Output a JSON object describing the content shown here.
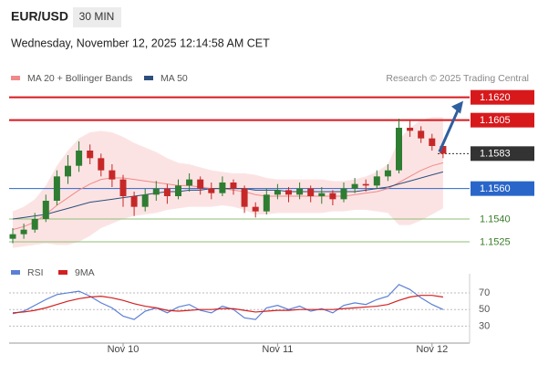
{
  "header": {
    "symbol": "EUR/USD",
    "timeframe": "30 MIN",
    "timestamp": "Wednesday, November 12, 2025 12:14:58 AM CET",
    "source": "Research © 2025 Trading Central"
  },
  "chart_data": [
    {
      "type": "candlestick",
      "categories": [
        null,
        null,
        null,
        null,
        null,
        null,
        null,
        null,
        null,
        null,
        "Nov 10",
        null,
        null,
        null,
        null,
        null,
        null,
        null,
        null,
        null,
        null,
        null,
        null,
        null,
        "Nov 11",
        null,
        null,
        null,
        null,
        null,
        null,
        null,
        null,
        null,
        null,
        null,
        null,
        null,
        "Nov 12",
        null
      ],
      "ohlc": [
        [
          1.1527,
          1.1534,
          1.1524,
          1.153
        ],
        [
          1.153,
          1.1537,
          1.1527,
          1.1533
        ],
        [
          1.1533,
          1.1544,
          1.1531,
          1.154
        ],
        [
          1.154,
          1.1556,
          1.1538,
          1.1552
        ],
        [
          1.1552,
          1.1572,
          1.1549,
          1.1568
        ],
        [
          1.1568,
          1.1582,
          1.1563,
          1.1575
        ],
        [
          1.1575,
          1.1591,
          1.1571,
          1.1585
        ],
        [
          1.1585,
          1.1589,
          1.1576,
          1.158
        ],
        [
          1.158,
          1.1583,
          1.1568,
          1.1572
        ],
        [
          1.1572,
          1.1576,
          1.1561,
          1.1566
        ],
        [
          1.1566,
          1.1569,
          1.1548,
          1.1555
        ],
        [
          1.1555,
          1.1558,
          1.1542,
          1.1548
        ],
        [
          1.1548,
          1.156,
          1.1545,
          1.1556
        ],
        [
          1.1556,
          1.1565,
          1.1552,
          1.156
        ],
        [
          1.156,
          1.1563,
          1.155,
          1.1555
        ],
        [
          1.1555,
          1.1566,
          1.1553,
          1.1562
        ],
        [
          1.1562,
          1.157,
          1.1558,
          1.1566
        ],
        [
          1.1566,
          1.1568,
          1.1556,
          1.156
        ],
        [
          1.156,
          1.1564,
          1.1553,
          1.1557
        ],
        [
          1.1557,
          1.1568,
          1.1555,
          1.1564
        ],
        [
          1.1564,
          1.1566,
          1.1556,
          1.156
        ],
        [
          1.156,
          1.1562,
          1.1544,
          1.1548
        ],
        [
          1.1548,
          1.1551,
          1.1541,
          1.1545
        ],
        [
          1.1545,
          1.156,
          1.1543,
          1.1556
        ],
        [
          1.1556,
          1.1563,
          1.1553,
          1.1559
        ],
        [
          1.1559,
          1.1561,
          1.1551,
          1.1556
        ],
        [
          1.1556,
          1.1564,
          1.1553,
          1.156
        ],
        [
          1.156,
          1.1562,
          1.1551,
          1.1555
        ],
        [
          1.1555,
          1.1561,
          1.155,
          1.1557
        ],
        [
          1.1557,
          1.1559,
          1.1549,
          1.1553
        ],
        [
          1.1553,
          1.1564,
          1.1551,
          1.156
        ],
        [
          1.156,
          1.1567,
          1.1557,
          1.1563
        ],
        [
          1.1563,
          1.1566,
          1.1558,
          1.1562
        ],
        [
          1.1562,
          1.1572,
          1.156,
          1.1568
        ],
        [
          1.1568,
          1.1576,
          1.1565,
          1.1572
        ],
        [
          1.1572,
          1.1606,
          1.157,
          1.16
        ],
        [
          1.16,
          1.1605,
          1.1594,
          1.1598
        ],
        [
          1.1598,
          1.1601,
          1.159,
          1.1593
        ],
        [
          1.1593,
          1.1596,
          1.1585,
          1.1588
        ],
        [
          1.1588,
          1.159,
          1.158,
          1.1583
        ]
      ],
      "up_color": "#2e7d32",
      "down_color": "#c62828",
      "series": [
        {
          "name": "MA 20 + Bollinger Bands",
          "color": "#f08a8a",
          "values": [
            1.1533,
            1.1535,
            1.1538,
            1.1543,
            1.1549,
            1.1554,
            1.1559,
            1.1563,
            1.1566,
            1.1567,
            1.1567,
            1.1566,
            1.1565,
            1.1564,
            1.1563,
            1.1562,
            1.1562,
            1.1561,
            1.156,
            1.156,
            1.1559,
            1.1558,
            1.1556,
            1.1555,
            1.1555,
            1.1555,
            1.1555,
            1.1555,
            1.1555,
            1.1555,
            1.1555,
            1.1556,
            1.1557,
            1.1558,
            1.156,
            1.1564,
            1.1568,
            1.1572,
            1.1575,
            1.1577
          ]
        },
        {
          "name": "MA 50",
          "color": "#2d4f7c",
          "values": [
            1.154,
            1.1541,
            1.1542,
            1.1543,
            1.1545,
            1.1547,
            1.1549,
            1.1551,
            1.1552,
            1.1553,
            1.1554,
            1.1555,
            1.1556,
            1.1557,
            1.1558,
            1.1558,
            1.1559,
            1.1559,
            1.156,
            1.156,
            1.156,
            1.156,
            1.1559,
            1.1559,
            1.1559,
            1.1558,
            1.1558,
            1.1558,
            1.1558,
            1.1558,
            1.1558,
            1.1558,
            1.1559,
            1.156,
            1.1561,
            1.1563,
            1.1565,
            1.1567,
            1.1569,
            1.1571
          ]
        }
      ],
      "bands": {
        "color": "#fbdada",
        "upper": [
          1.1545,
          1.1548,
          1.1553,
          1.1562,
          1.1575,
          1.1585,
          1.1593,
          1.1597,
          1.1598,
          1.1597,
          1.1594,
          1.159,
          1.1587,
          1.1584,
          1.158,
          1.1577,
          1.1576,
          1.1574,
          1.1572,
          1.1571,
          1.157,
          1.157,
          1.1569,
          1.1567,
          1.1566,
          1.1566,
          1.1566,
          1.1566,
          1.1566,
          1.1565,
          1.1565,
          1.1566,
          1.1568,
          1.1571,
          1.1576,
          1.1592,
          1.16,
          1.1605,
          1.1607,
          1.1607
        ],
        "lower": [
          1.1521,
          1.1522,
          1.1523,
          1.1524,
          1.1523,
          1.1523,
          1.1525,
          1.1529,
          1.1534,
          1.1537,
          1.154,
          1.1542,
          1.1543,
          1.1544,
          1.1546,
          1.1547,
          1.1548,
          1.1548,
          1.1548,
          1.1549,
          1.1548,
          1.1546,
          1.1543,
          1.1543,
          1.1544,
          1.1544,
          1.1544,
          1.1544,
          1.1544,
          1.1545,
          1.1545,
          1.1546,
          1.1546,
          1.1545,
          1.1544,
          1.1536,
          1.1536,
          1.1539,
          1.1543,
          1.1547
        ]
      },
      "levels": [
        {
          "value": 1.162,
          "label": "1.1620",
          "color": "#d7191c",
          "line": "solid",
          "box": true
        },
        {
          "value": 1.1605,
          "label": "1.1605",
          "color": "#d7191c",
          "line": "solid",
          "box": true
        },
        {
          "value": 1.1583,
          "label": "1.1583",
          "color": "#333333",
          "line": "dotted",
          "box": true
        },
        {
          "value": 1.156,
          "label": "1.1560",
          "color": "#2a66c9",
          "line": "solid",
          "box": true
        },
        {
          "value": 1.154,
          "label": "1.1540",
          "color": "#8fbf76",
          "line": "solid",
          "box": false
        },
        {
          "value": 1.1525,
          "label": "1.1525",
          "color": "#8fbf76",
          "line": "solid",
          "box": false
        }
      ],
      "ylim": [
        1.1519,
        1.1627
      ]
    },
    {
      "type": "line",
      "series": [
        {
          "name": "RSI",
          "color": "#5b7fd6",
          "values": [
            45,
            48,
            55,
            62,
            68,
            70,
            72,
            66,
            58,
            52,
            42,
            38,
            48,
            52,
            46,
            53,
            56,
            49,
            46,
            54,
            50,
            40,
            38,
            52,
            55,
            50,
            54,
            48,
            51,
            46,
            55,
            58,
            56,
            62,
            66,
            80,
            74,
            64,
            56,
            50
          ]
        },
        {
          "name": "9MA",
          "color": "#d42020",
          "values": [
            46,
            47,
            49,
            52,
            56,
            60,
            63,
            65,
            66,
            64,
            61,
            57,
            54,
            52,
            49,
            48,
            49,
            50,
            50,
            51,
            51,
            49,
            47,
            48,
            49,
            49,
            50,
            50,
            50,
            50,
            51,
            52,
            53,
            54,
            56,
            61,
            65,
            67,
            67,
            65
          ]
        }
      ],
      "ylim": [
        14,
        93
      ],
      "yticks": [
        70,
        50,
        30
      ],
      "grid": true
    }
  ]
}
